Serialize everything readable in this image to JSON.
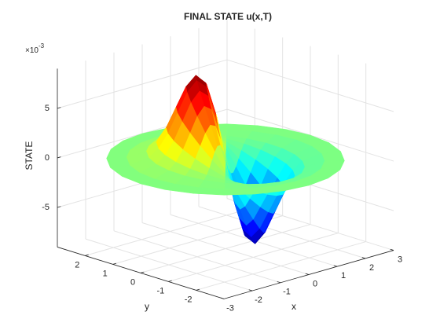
{
  "chart_data": {
    "type": "surface",
    "title": "FINAL STATE u(x,T)",
    "xlabel": "x",
    "ylabel": "y",
    "zlabel": "STATE",
    "z_multiplier": "×10",
    "z_multiplier_exponent": "-3",
    "colormap": "jet",
    "grid": true,
    "xlim": [
      -3,
      3
    ],
    "ylim": [
      -3,
      3
    ],
    "zlim": [
      -9,
      9
    ],
    "xticks": [
      -3,
      -2,
      -1,
      0,
      1,
      2,
      3
    ],
    "yticks": [
      -2,
      -1,
      0,
      1,
      2
    ],
    "zticks": [
      -5,
      0,
      5
    ],
    "r": [
      0,
      0.25,
      0.5,
      0.75,
      1,
      1.25,
      1.5,
      1.75,
      2,
      2.5,
      3
    ],
    "theta": [
      0,
      15,
      30,
      45,
      60,
      75,
      90,
      105,
      120,
      135,
      150,
      165,
      180,
      195,
      210,
      225,
      240,
      255,
      270,
      285,
      300,
      315,
      330,
      345
    ],
    "z": [
      [
        0,
        0,
        0,
        0,
        0,
        0,
        0,
        0,
        0,
        0,
        0,
        0,
        0,
        0,
        0,
        0,
        0,
        0,
        0,
        0,
        0,
        0,
        0,
        0
      ],
      [
        -3.29,
        -2.33,
        -1.2,
        0,
        1.2,
        2.33,
        3.29,
        4.03,
        4.49,
        4.65,
        4.49,
        4.03,
        3.29,
        2.33,
        1.2,
        0,
        -1.2,
        -2.33,
        -3.29,
        -4.03,
        -4.49,
        -4.65,
        -4.49,
        -4.03
      ],
      [
        -5.45,
        -3.86,
        -2,
        0,
        2,
        3.86,
        5.45,
        6.68,
        7.45,
        7.71,
        7.45,
        6.68,
        5.45,
        3.86,
        2,
        0,
        -2,
        -3.86,
        -5.45,
        -6.68,
        -7.45,
        -7.71,
        -7.45,
        -6.68
      ],
      [
        -5.98,
        -4.23,
        -2.19,
        0,
        2.19,
        4.23,
        5.98,
        7.33,
        8.17,
        8.46,
        8.17,
        7.33,
        5.98,
        4.23,
        2.19,
        0,
        -2.19,
        -4.23,
        -5.98,
        -7.33,
        -8.17,
        -8.46,
        -8.17,
        -7.33
      ],
      [
        -5.15,
        -3.65,
        -1.89,
        0,
        1.89,
        3.65,
        5.15,
        6.31,
        7.04,
        7.29,
        7.04,
        6.31,
        5.15,
        3.65,
        1.89,
        0,
        -1.89,
        -3.65,
        -5.15,
        -6.31,
        -7.04,
        -7.29,
        -7.04,
        -6.31
      ],
      [
        -3.68,
        -2.6,
        -1.35,
        0,
        1.35,
        2.6,
        3.68,
        4.5,
        5.02,
        5.2,
        5.02,
        4.5,
        3.68,
        2.6,
        1.35,
        0,
        -1.35,
        -2.6,
        -3.68,
        -4.5,
        -5.02,
        -5.2,
        -5.02,
        -4.5
      ],
      [
        -2.21,
        -1.56,
        -0.81,
        0,
        0.81,
        1.56,
        2.21,
        2.7,
        3.01,
        3.12,
        3.01,
        2.7,
        2.21,
        1.56,
        0.81,
        0,
        -0.81,
        -1.56,
        -2.21,
        -2.7,
        -3.01,
        -3.12,
        -3.01,
        -2.7
      ],
      [
        -1.15,
        -0.81,
        -0.42,
        0,
        0.42,
        0.81,
        1.15,
        1.4,
        1.56,
        1.62,
        1.56,
        1.4,
        1.15,
        0.81,
        0.42,
        0,
        -0.42,
        -0.81,
        -1.15,
        -1.4,
        -1.56,
        -1.62,
        -1.56,
        -1.4
      ],
      [
        -0.51,
        -0.36,
        -0.19,
        0,
        0.19,
        0.36,
        0.51,
        0.62,
        0.7,
        0.72,
        0.7,
        0.62,
        0.51,
        0.36,
        0.19,
        0,
        -0.19,
        -0.36,
        -0.51,
        -0.62,
        -0.7,
        -0.72,
        -0.7,
        -0.62
      ],
      [
        -0.06,
        -0.05,
        -0.02,
        0,
        0.02,
        0.05,
        0.06,
        0.08,
        0.09,
        0.09,
        0.09,
        0.08,
        0.06,
        0.05,
        0.02,
        0,
        -0.02,
        -0.05,
        -0.06,
        -0.08,
        -0.09,
        -0.09,
        -0.09,
        -0.08
      ],
      [
        0,
        0,
        0,
        0,
        0,
        0,
        0,
        0,
        0,
        0,
        0,
        0,
        0,
        0,
        0,
        0,
        0,
        0,
        0,
        0,
        0,
        0,
        0,
        0
      ]
    ]
  }
}
